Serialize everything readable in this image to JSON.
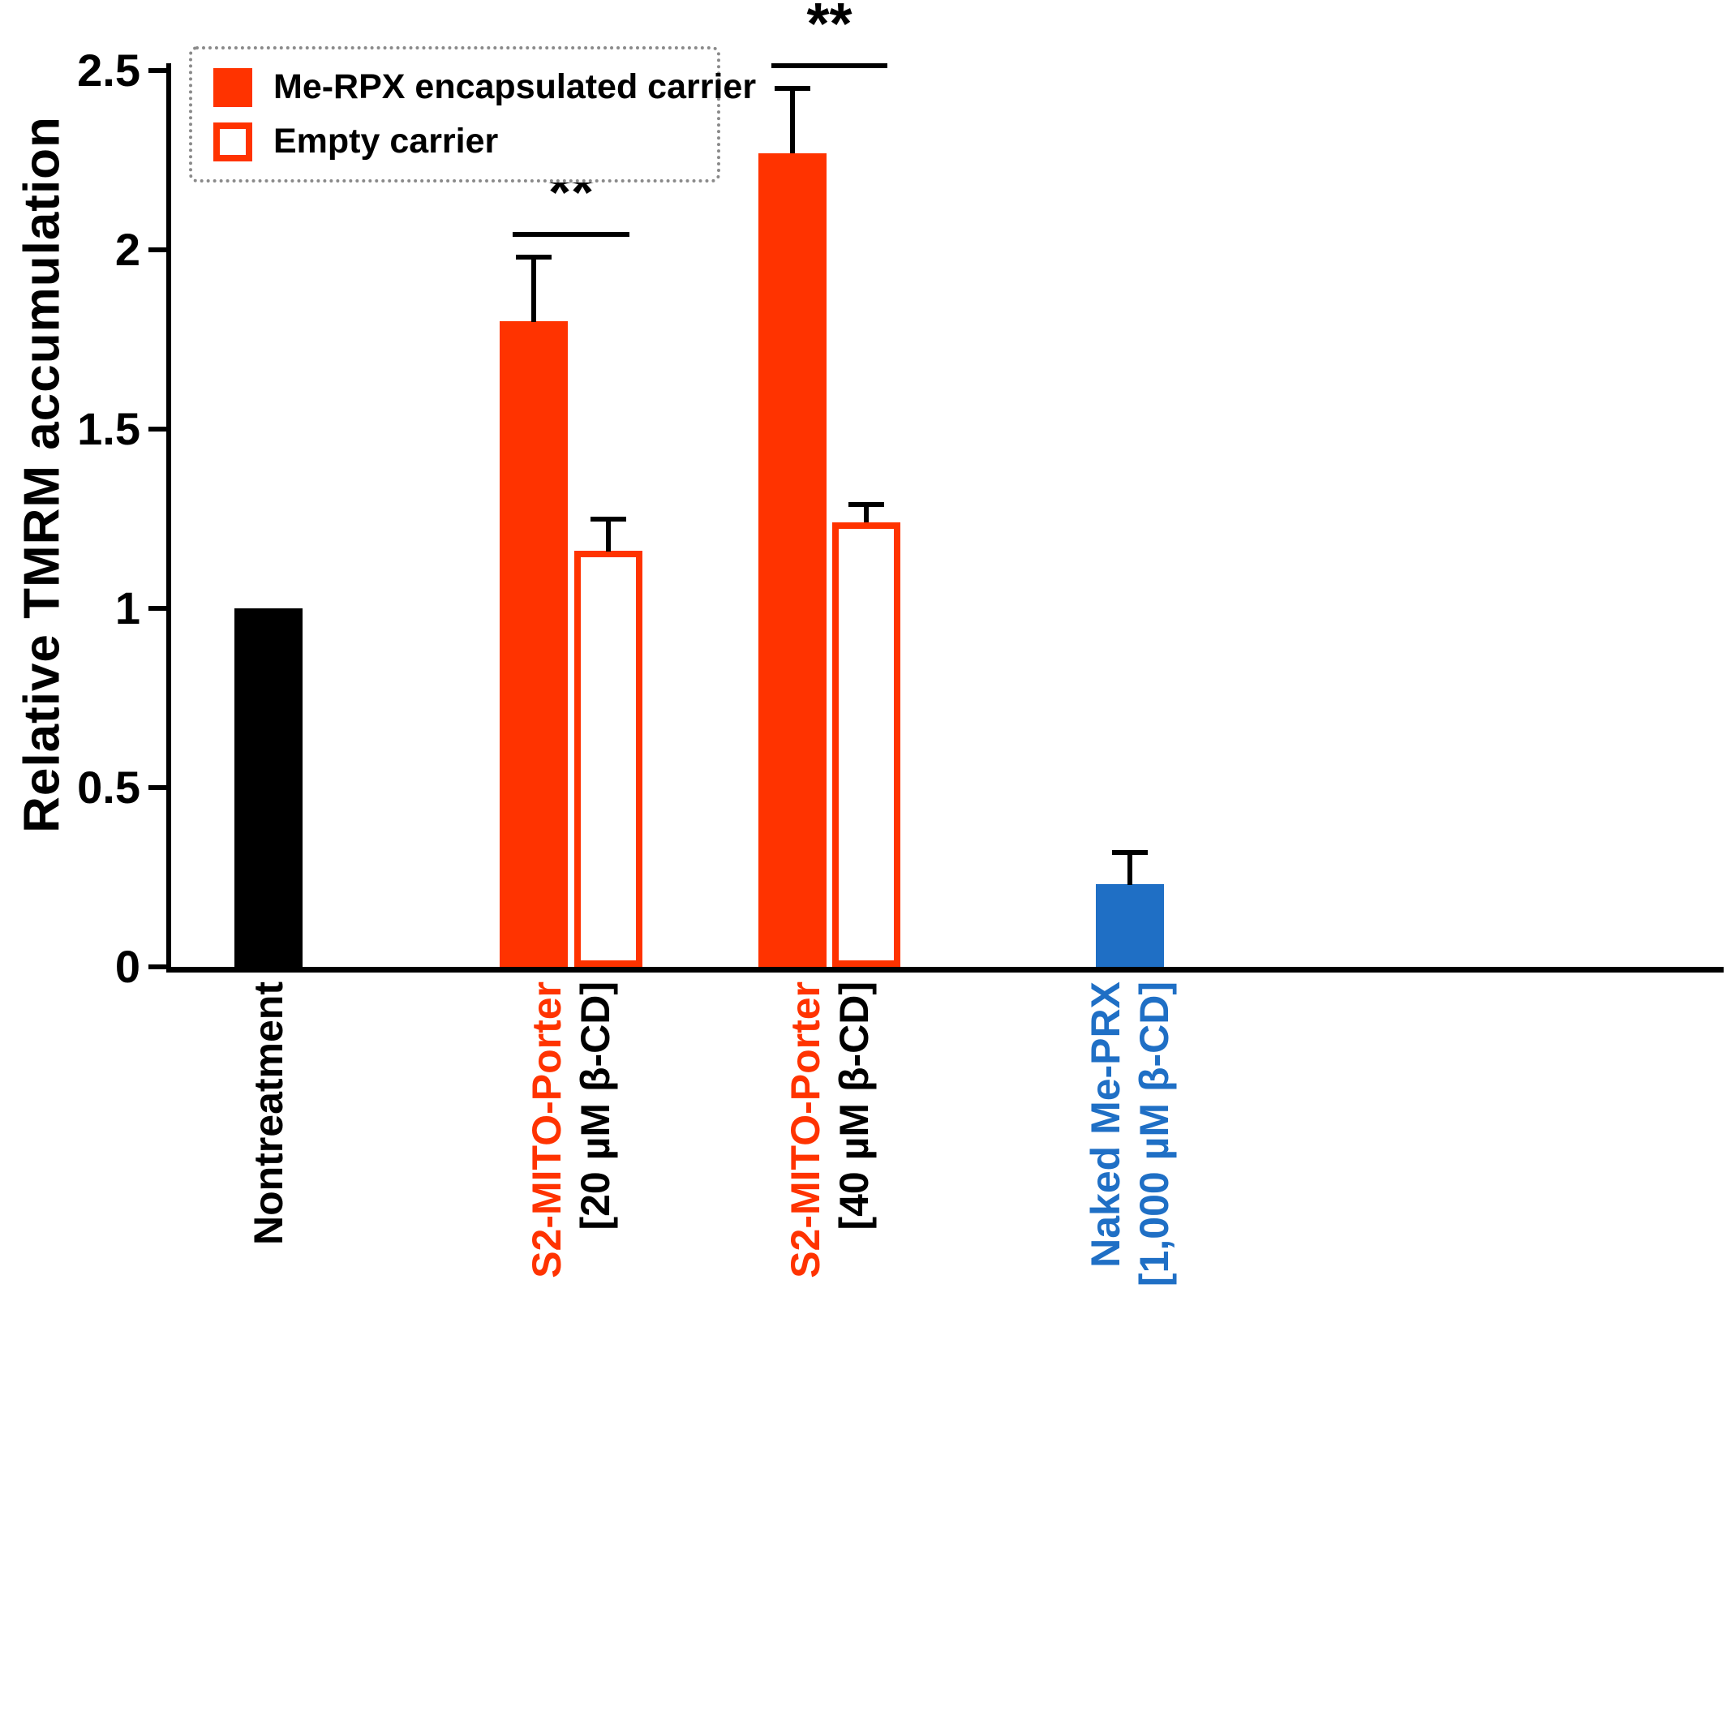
{
  "chart_data": {
    "type": "bar",
    "title": "",
    "ylabel": "Relative TMRM accumulation",
    "xlabel": "",
    "ylim": [
      0,
      2.5
    ],
    "yticks": [
      0,
      0.5,
      1,
      1.5,
      2,
      2.5
    ],
    "grid": false,
    "legend_position": "top-left",
    "legend": [
      {
        "label": "Me-RPX encapsulated carrier",
        "swatch": "filled",
        "color": "#FF3300"
      },
      {
        "label": "Empty carrier",
        "swatch": "outline",
        "color": "#FF3300"
      }
    ],
    "groups": [
      {
        "label_lines": [
          {
            "text": "Nontreatment",
            "color": "#000000"
          }
        ],
        "significance": null,
        "bars": [
          {
            "series": "Nontreatment",
            "value": 1.0,
            "error": 0,
            "color": "#000000",
            "filled": true
          }
        ]
      },
      {
        "label_lines": [
          {
            "text": "S2-MITO-Porter",
            "color": "#FF3300"
          },
          {
            "text": "[20 µM β-CD]",
            "color": "#000000"
          }
        ],
        "significance": "**",
        "bars": [
          {
            "series": "Me-RPX encapsulated carrier",
            "value": 1.8,
            "error": 0.18,
            "color": "#FF3300",
            "filled": true
          },
          {
            "series": "Empty carrier",
            "value": 1.16,
            "error": 0.09,
            "color": "#FF3300",
            "filled": false
          }
        ]
      },
      {
        "label_lines": [
          {
            "text": "S2-MITO-Porter",
            "color": "#FF3300"
          },
          {
            "text": "[40 µM β-CD]",
            "color": "#000000"
          }
        ],
        "significance": "**",
        "bars": [
          {
            "series": "Me-RPX encapsulated carrier",
            "value": 2.27,
            "error": 0.18,
            "color": "#FF3300",
            "filled": true
          },
          {
            "series": "Empty carrier",
            "value": 1.24,
            "error": 0.05,
            "color": "#FF3300",
            "filled": false
          }
        ]
      },
      {
        "label_lines": [
          {
            "text": "Naked Me-PRX",
            "color": "#1F6FC5"
          },
          {
            "text": "[1,000 µM β-CD]",
            "color": "#1F6FC5"
          }
        ],
        "significance": null,
        "bars": [
          {
            "series": "Naked Me-PRX",
            "value": 0.23,
            "error": 0.09,
            "color": "#1F6FC5",
            "filled": true
          }
        ]
      }
    ]
  }
}
